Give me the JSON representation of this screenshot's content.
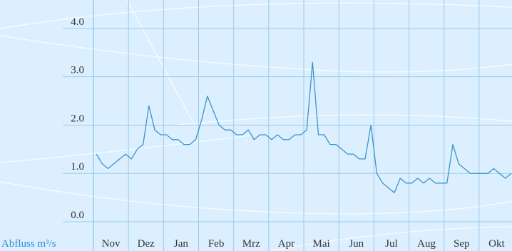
{
  "chart_data": {
    "type": "line",
    "ylabel": "Abfluss m³/s",
    "categories": [
      "Nov",
      "Dez",
      "Jan",
      "Feb",
      "Mrz",
      "Apr",
      "Mai",
      "Jun",
      "Jul",
      "Aug",
      "Sep",
      "Okt"
    ],
    "values": [
      [
        1.4,
        1.2,
        1.1,
        1.2,
        1.3,
        1.4
      ],
      [
        1.3,
        1.5,
        1.6,
        2.4,
        1.9,
        1.8
      ],
      [
        1.8,
        1.7,
        1.7,
        1.6,
        1.6,
        1.7
      ],
      [
        2.1,
        2.6,
        2.3,
        2.0,
        1.9,
        1.9
      ],
      [
        1.8,
        1.8,
        1.9,
        1.7,
        1.8,
        1.8
      ],
      [
        1.7,
        1.8,
        1.7,
        1.7,
        1.8,
        1.8
      ],
      [
        1.9,
        3.3,
        1.8,
        1.8,
        1.6,
        1.6
      ],
      [
        1.5,
        1.4,
        1.4,
        1.3,
        1.3,
        2.0
      ],
      [
        1.0,
        0.8,
        0.7,
        0.6,
        0.9,
        0.8
      ],
      [
        0.8,
        0.9,
        0.8,
        0.9,
        0.8,
        0.8
      ],
      [
        0.8,
        1.6,
        1.2,
        1.1,
        1.0,
        1.0
      ],
      [
        1.0,
        1.0,
        1.1,
        1.0,
        0.9,
        1.0
      ]
    ],
    "color": "#3a94cc",
    "ylim": [
      0,
      4.5
    ],
    "yticks": [
      {
        "value": 0,
        "label": "0.0"
      },
      {
        "value": 1,
        "label": "1.0"
      },
      {
        "value": 2,
        "label": "2.0"
      },
      {
        "value": 3,
        "label": "3.0"
      },
      {
        "value": 4,
        "label": "4.0"
      }
    ],
    "grid": true
  }
}
